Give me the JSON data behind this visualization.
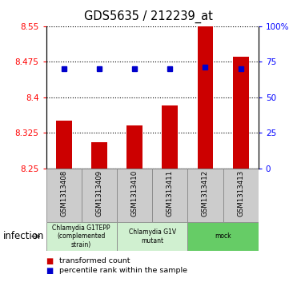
{
  "title": "GDS5635 / 212239_at",
  "samples": [
    "GSM1313408",
    "GSM1313409",
    "GSM1313410",
    "GSM1313411",
    "GSM1313412",
    "GSM1313413"
  ],
  "bar_values": [
    8.35,
    8.305,
    8.34,
    8.382,
    8.555,
    8.485
  ],
  "percentile_values": [
    70,
    70,
    70,
    70,
    71,
    70
  ],
  "bar_bottom": 8.25,
  "ylim_left": [
    8.25,
    8.55
  ],
  "ylim_right": [
    0,
    100
  ],
  "yticks_left": [
    8.25,
    8.325,
    8.4,
    8.475,
    8.55
  ],
  "yticks_right": [
    0,
    25,
    50,
    75,
    100
  ],
  "ytick_labels_right": [
    "0",
    "25",
    "50",
    "75",
    "100%"
  ],
  "groups": [
    {
      "label": "Chlamydia G1TEPP\n(complemented\nstrain)",
      "start": 0,
      "end": 2,
      "color": "#d0f0d0"
    },
    {
      "label": "Chlamydia G1V\nmutant",
      "start": 2,
      "end": 4,
      "color": "#d0f0d0"
    },
    {
      "label": "mock",
      "start": 4,
      "end": 6,
      "color": "#66cc66"
    }
  ],
  "group_factor_label": "infection",
  "bar_color": "#cc0000",
  "percentile_color": "#0000cc",
  "bar_width": 0.45,
  "legend_items": [
    {
      "color": "#cc0000",
      "label": "transformed count"
    },
    {
      "color": "#0000cc",
      "label": "percentile rank within the sample"
    }
  ],
  "sample_label_bg": "#cccccc",
  "sample_label_border": "#888888"
}
